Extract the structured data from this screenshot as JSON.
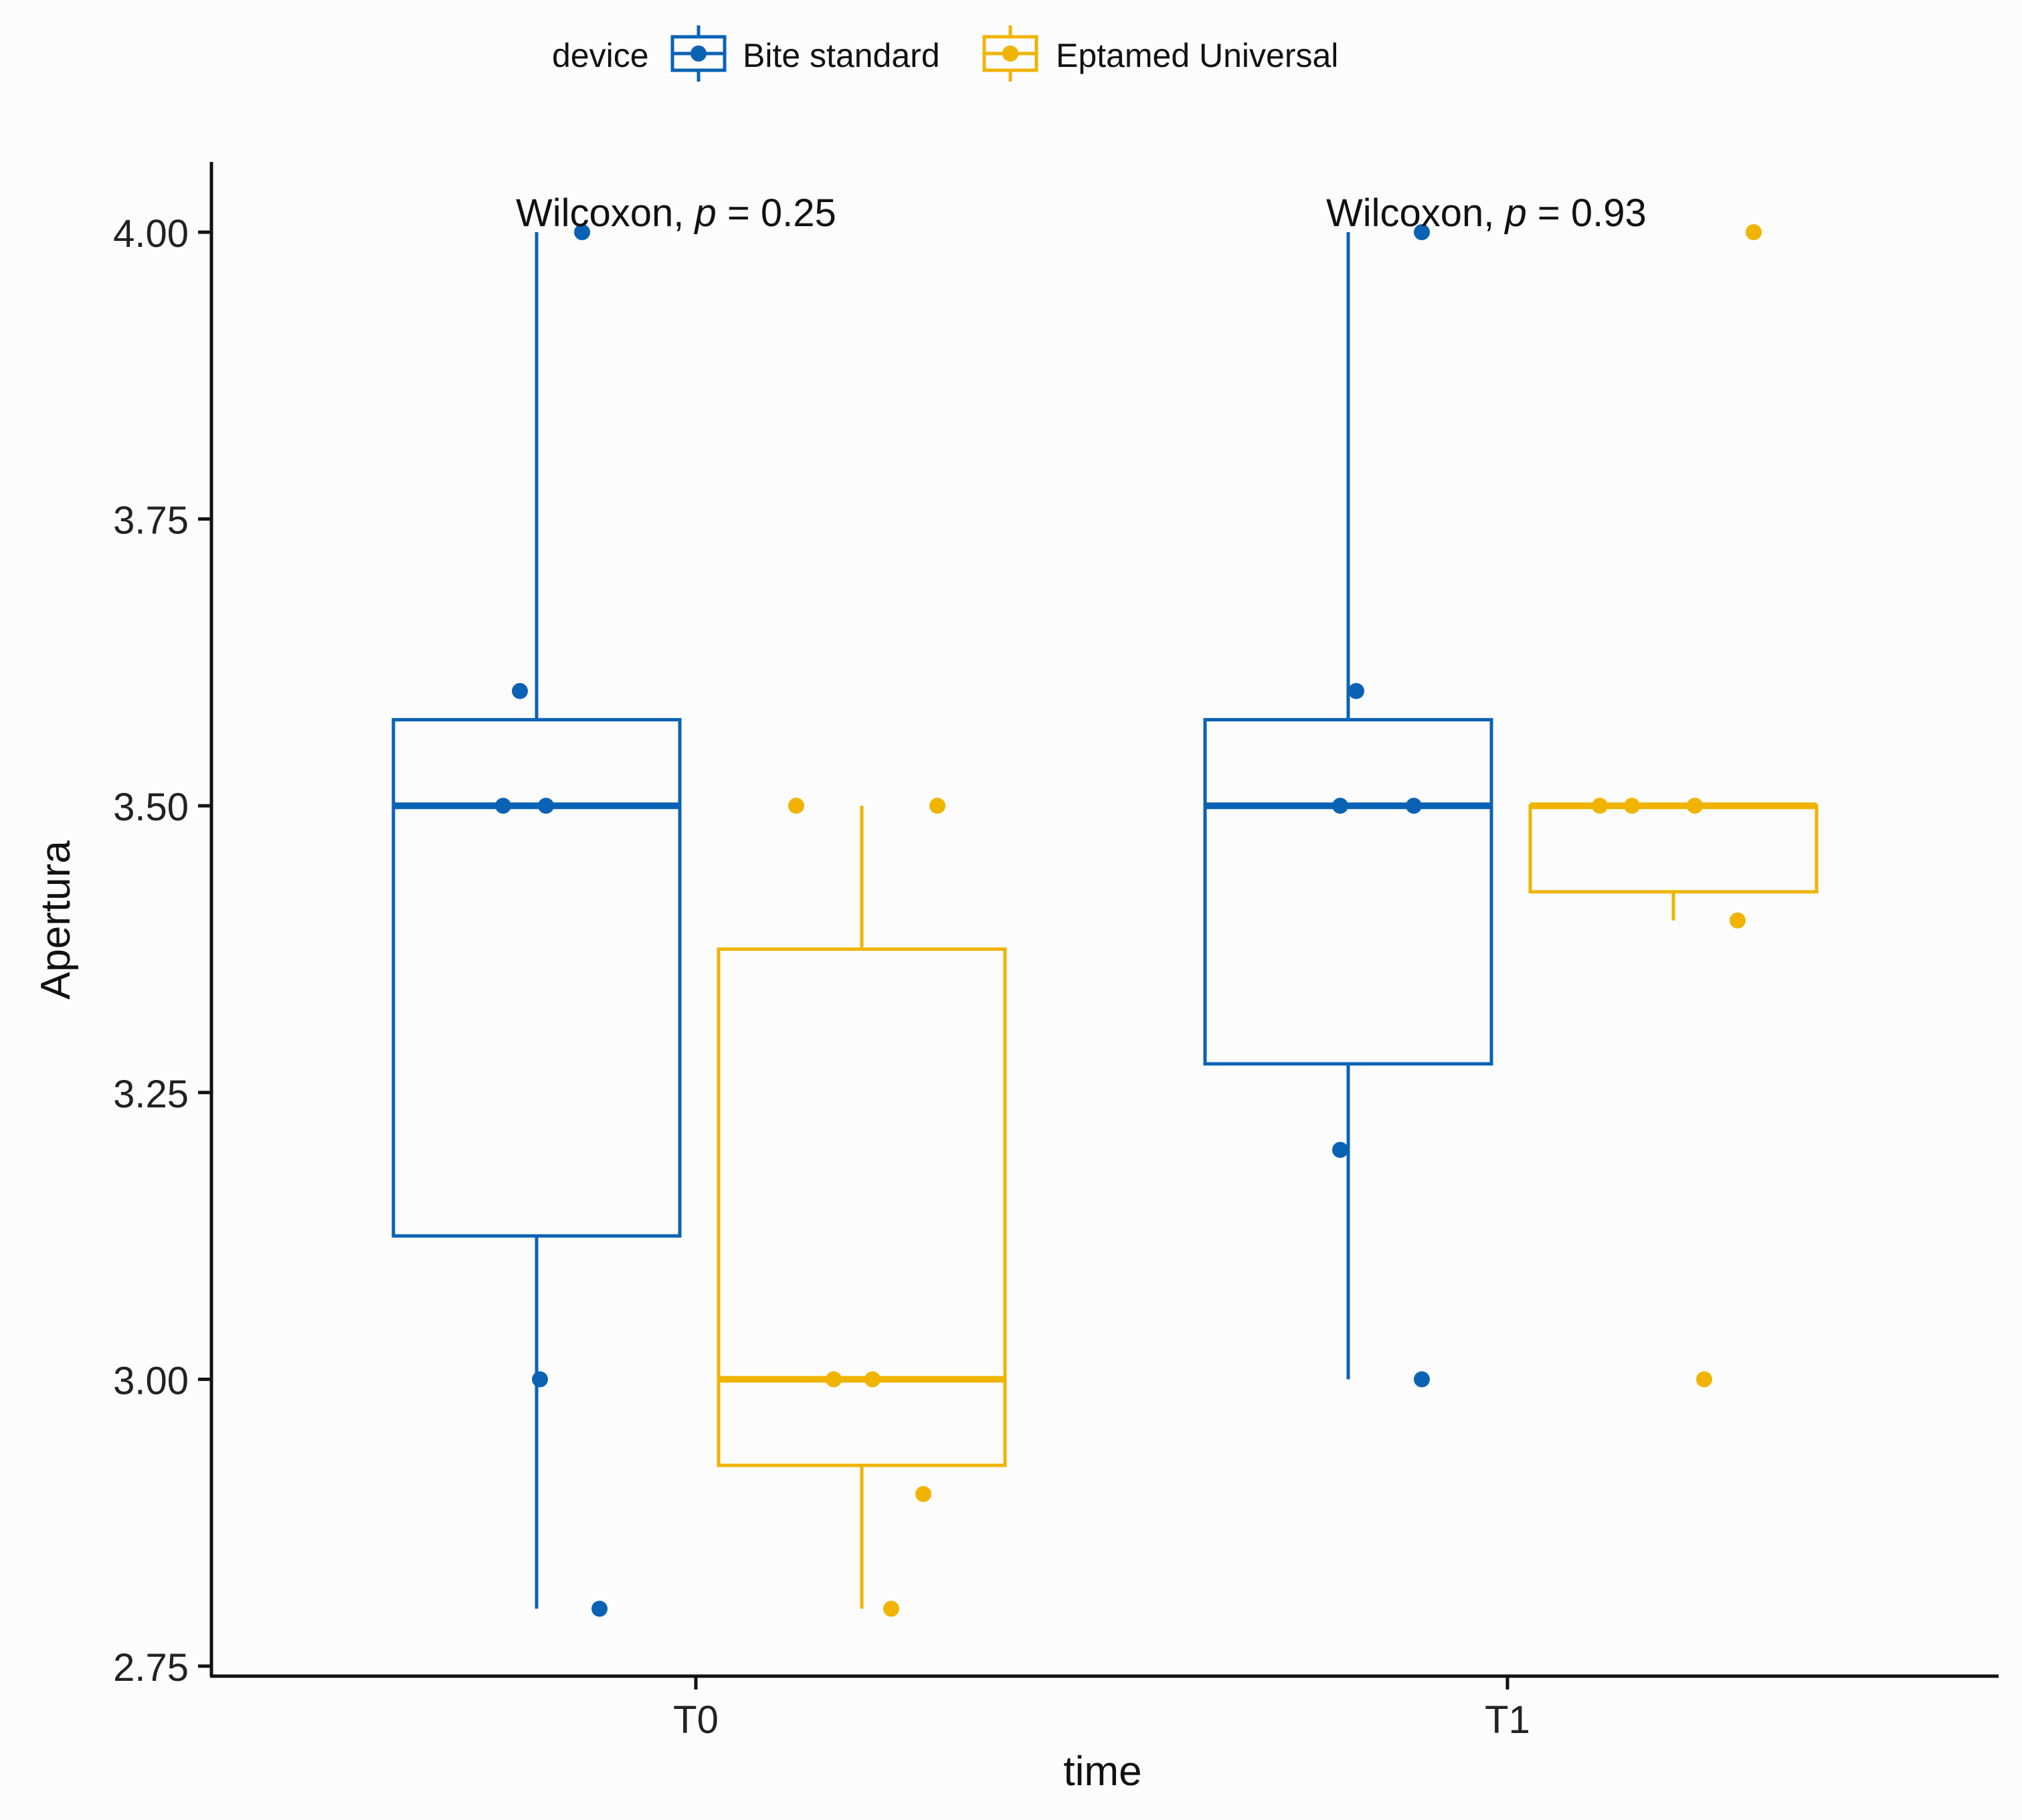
{
  "chart_data": {
    "type": "box",
    "xlabel": "time",
    "ylabel": "Apertura",
    "ylim": [
      2.75,
      4.0
    ],
    "y_ticks": [
      "2.75",
      "3.00",
      "3.25",
      "3.50",
      "3.75",
      "4.00"
    ],
    "categories": [
      "T0",
      "T1"
    ],
    "legend": {
      "title": "device",
      "position": "top"
    },
    "series": [
      {
        "name": "Bite standard",
        "color": "#0a62b4",
        "boxes": [
          {
            "category": "T0",
            "min": 2.8,
            "q1": 3.125,
            "median": 3.5,
            "q3": 3.575,
            "max": 4.0,
            "points": [
              4.0,
              3.6,
              3.5,
              3.5,
              3.0,
              2.8
            ]
          },
          {
            "category": "T1",
            "min": 3.0,
            "q1": 3.275,
            "median": 3.5,
            "q3": 3.575,
            "max": 4.0,
            "points": [
              4.0,
              3.6,
              3.5,
              3.5,
              3.2,
              3.0
            ]
          }
        ]
      },
      {
        "name": "Eptamed Universal",
        "color": "#f0b400",
        "boxes": [
          {
            "category": "T0",
            "min": 2.8,
            "q1": 2.925,
            "median": 3.0,
            "q3": 3.375,
            "max": 3.5,
            "points": [
              3.5,
              3.5,
              3.0,
              3.0,
              2.9,
              2.8
            ]
          },
          {
            "category": "T1",
            "min": 3.4,
            "q1": 3.425,
            "median": 3.5,
            "q3": 3.5,
            "max": 3.5,
            "points": [
              4.0,
              3.5,
              3.5,
              3.5,
              3.4,
              3.0
            ]
          }
        ]
      }
    ],
    "annotations": [
      {
        "category": "T0",
        "prefix": "Wilcoxon, ",
        "p_symbol": "p",
        "p_text": " = 0.25"
      },
      {
        "category": "T1",
        "prefix": "Wilcoxon, ",
        "p_symbol": "p",
        "p_text": " = 0.93"
      }
    ]
  }
}
